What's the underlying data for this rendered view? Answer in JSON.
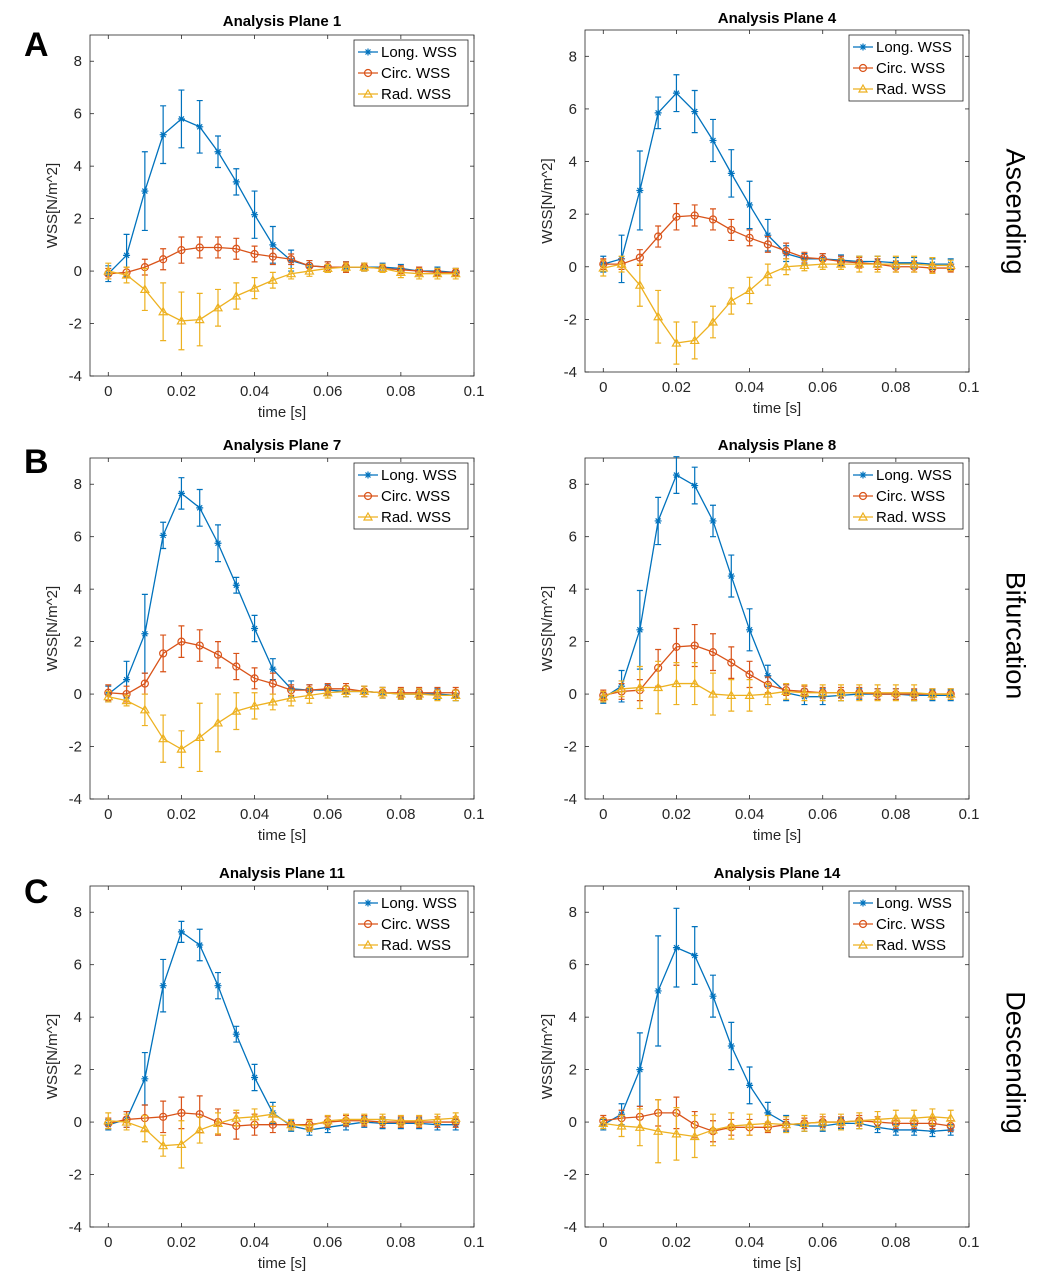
{
  "panel_letters": [
    "A",
    "B",
    "C"
  ],
  "row_labels": [
    "Ascending",
    "Bifurcation",
    "Descending"
  ],
  "colors": {
    "long": "#0072BD",
    "circ": "#D95319",
    "rad": "#EDB120",
    "axis": "#262626",
    "grid_box": "#262626"
  },
  "chart_data": [
    {
      "type": "line",
      "title": "Analysis Plane 1",
      "xlabel": "time [s]",
      "ylabel": "WSS[N/m^2]",
      "xlim": [
        -0.005,
        0.1
      ],
      "ylim": [
        -4,
        9
      ],
      "xticks": [
        "0",
        "0.02",
        "0.04",
        "0.06",
        "0.08",
        "0.1"
      ],
      "yticks": [
        "-4",
        "-2",
        "0",
        "2",
        "4",
        "6",
        "8"
      ],
      "legend": [
        "Long. WSS",
        "Circ. WSS",
        "Rad. WSS"
      ],
      "legend_location": "top-right",
      "series": [
        {
          "name": "Long. WSS",
          "y": [
            -0.1,
            0.6,
            3.05,
            5.2,
            5.8,
            5.5,
            4.55,
            3.4,
            2.15,
            1.0,
            0.4,
            0.2,
            0.15,
            0.15,
            0.15,
            0.15,
            0.1,
            0.0,
            0.0,
            -0.05
          ],
          "err": [
            0.3,
            0.8,
            1.5,
            1.1,
            1.1,
            1.0,
            0.6,
            0.5,
            0.9,
            0.7,
            0.4,
            0.2,
            0.2,
            0.2,
            0.15,
            0.15,
            0.15,
            0.15,
            0.15,
            0.15
          ]
        },
        {
          "name": "Circ. WSS",
          "y": [
            -0.1,
            -0.05,
            0.15,
            0.45,
            0.8,
            0.9,
            0.9,
            0.85,
            0.65,
            0.55,
            0.45,
            0.2,
            0.15,
            0.15,
            0.15,
            0.1,
            0.05,
            0.0,
            -0.05,
            -0.05
          ],
          "err": [
            0.2,
            0.2,
            0.3,
            0.4,
            0.5,
            0.4,
            0.4,
            0.4,
            0.3,
            0.3,
            0.2,
            0.2,
            0.2,
            0.2,
            0.15,
            0.15,
            0.15,
            0.15,
            0.15,
            0.15
          ]
        },
        {
          "name": "Rad. WSS",
          "y": [
            0.0,
            -0.15,
            -0.7,
            -1.55,
            -1.9,
            -1.85,
            -1.4,
            -0.95,
            -0.65,
            -0.35,
            -0.1,
            0.0,
            0.1,
            0.15,
            0.15,
            0.1,
            -0.05,
            -0.1,
            -0.1,
            -0.1
          ],
          "err": [
            0.3,
            0.3,
            0.8,
            1.1,
            1.1,
            1.0,
            0.7,
            0.5,
            0.4,
            0.3,
            0.2,
            0.2,
            0.15,
            0.15,
            0.15,
            0.15,
            0.2,
            0.2,
            0.2,
            0.2
          ]
        }
      ]
    },
    {
      "type": "line",
      "title": "Analysis Plane 4",
      "xlabel": "time [s]",
      "ylabel": "WSS[N/m^2]",
      "xlim": [
        -0.005,
        0.1
      ],
      "ylim": [
        -4,
        9
      ],
      "xticks": [
        "0",
        "0.02",
        "0.04",
        "0.06",
        "0.08",
        "0.1"
      ],
      "yticks": [
        "-4",
        "-2",
        "0",
        "2",
        "4",
        "6",
        "8"
      ],
      "legend": [
        "Long. WSS",
        "Circ. WSS",
        "Rad. WSS"
      ],
      "legend_location": "top-right",
      "series": [
        {
          "name": "Long. WSS",
          "y": [
            0.1,
            0.3,
            2.9,
            5.85,
            6.6,
            5.9,
            4.8,
            3.55,
            2.35,
            1.2,
            0.5,
            0.3,
            0.3,
            0.25,
            0.2,
            0.2,
            0.15,
            0.15,
            0.1,
            0.1
          ],
          "err": [
            0.3,
            0.9,
            1.5,
            0.6,
            0.7,
            0.8,
            0.8,
            0.9,
            0.9,
            0.6,
            0.3,
            0.2,
            0.2,
            0.2,
            0.2,
            0.2,
            0.2,
            0.2,
            0.2,
            0.2
          ]
        },
        {
          "name": "Circ. WSS",
          "y": [
            0.1,
            0.1,
            0.35,
            1.15,
            1.9,
            1.95,
            1.8,
            1.4,
            1.1,
            0.85,
            0.6,
            0.35,
            0.3,
            0.2,
            0.15,
            0.1,
            0.0,
            0.0,
            -0.05,
            -0.05
          ],
          "err": [
            0.2,
            0.2,
            0.3,
            0.4,
            0.5,
            0.4,
            0.4,
            0.4,
            0.3,
            0.3,
            0.3,
            0.2,
            0.2,
            0.2,
            0.2,
            0.2,
            0.2,
            0.2,
            0.15,
            0.15
          ]
        },
        {
          "name": "Rad. WSS",
          "y": [
            -0.05,
            0.1,
            -0.7,
            -1.9,
            -2.9,
            -2.8,
            -2.1,
            -1.3,
            -0.9,
            -0.3,
            0.0,
            0.05,
            0.1,
            0.1,
            0.1,
            0.1,
            0.1,
            0.1,
            0.05,
            0.05
          ],
          "err": [
            0.3,
            0.3,
            0.8,
            1.0,
            0.8,
            0.7,
            0.6,
            0.5,
            0.5,
            0.4,
            0.3,
            0.2,
            0.2,
            0.2,
            0.3,
            0.3,
            0.3,
            0.3,
            0.3,
            0.2
          ]
        }
      ]
    },
    {
      "type": "line",
      "title": "Analysis Plane 7",
      "xlabel": "time [s]",
      "ylabel": "WSS[N/m^2]",
      "xlim": [
        -0.005,
        0.1
      ],
      "ylim": [
        -4,
        9
      ],
      "xticks": [
        "0",
        "0.02",
        "0.04",
        "0.06",
        "0.08",
        "0.1"
      ],
      "yticks": [
        "-4",
        "-2",
        "0",
        "2",
        "4",
        "6",
        "8"
      ],
      "legend": [
        "Long. WSS",
        "Circ. WSS",
        "Rad. WSS"
      ],
      "legend_location": "top-right",
      "series": [
        {
          "name": "Long. WSS",
          "y": [
            0.0,
            0.55,
            2.3,
            6.05,
            7.65,
            7.1,
            5.75,
            4.15,
            2.5,
            0.95,
            0.2,
            0.15,
            0.15,
            0.1,
            0.1,
            0.05,
            0.0,
            0.0,
            0.0,
            -0.05
          ],
          "err": [
            0.3,
            0.7,
            1.5,
            0.5,
            0.6,
            0.7,
            0.7,
            0.3,
            0.5,
            0.4,
            0.3,
            0.2,
            0.2,
            0.2,
            0.2,
            0.2,
            0.2,
            0.2,
            0.2,
            0.2
          ]
        },
        {
          "name": "Circ. WSS",
          "y": [
            0.05,
            0.0,
            0.4,
            1.55,
            2.0,
            1.85,
            1.5,
            1.05,
            0.6,
            0.4,
            0.15,
            0.15,
            0.2,
            0.2,
            0.1,
            0.05,
            0.05,
            0.05,
            0.05,
            0.05
          ],
          "err": [
            0.3,
            0.3,
            0.4,
            0.7,
            0.6,
            0.6,
            0.5,
            0.5,
            0.4,
            0.4,
            0.2,
            0.2,
            0.2,
            0.2,
            0.2,
            0.2,
            0.2,
            0.2,
            0.2,
            0.2
          ]
        },
        {
          "name": "Rad. WSS",
          "y": [
            -0.1,
            -0.25,
            -0.6,
            -1.7,
            -2.1,
            -1.65,
            -1.1,
            -0.65,
            -0.45,
            -0.3,
            -0.15,
            -0.05,
            0.05,
            0.1,
            0.1,
            0.05,
            0.0,
            0.0,
            -0.05,
            -0.05
          ],
          "err": [
            0.2,
            0.2,
            0.6,
            0.9,
            0.7,
            1.3,
            1.1,
            0.7,
            0.5,
            0.3,
            0.3,
            0.3,
            0.2,
            0.2,
            0.2,
            0.2,
            0.2,
            0.2,
            0.2,
            0.2
          ]
        }
      ]
    },
    {
      "type": "line",
      "title": "Analysis Plane 8",
      "xlabel": "time [s]",
      "ylabel": "WSS[N/m^2]",
      "xlim": [
        -0.005,
        0.1
      ],
      "ylim": [
        -4,
        9
      ],
      "xticks": [
        "0",
        "0.02",
        "0.04",
        "0.06",
        "0.08",
        "0.1"
      ],
      "yticks": [
        "-4",
        "-2",
        "0",
        "2",
        "4",
        "6",
        "8"
      ],
      "legend": [
        "Long. WSS",
        "Circ. WSS",
        "Rad. WSS"
      ],
      "legend_location": "top-right",
      "series": [
        {
          "name": "Long. WSS",
          "y": [
            -0.15,
            0.3,
            2.45,
            6.6,
            8.35,
            7.95,
            6.6,
            4.5,
            2.45,
            0.7,
            0.05,
            -0.1,
            -0.1,
            -0.05,
            0.0,
            0.0,
            0.0,
            -0.05,
            -0.05,
            -0.05
          ],
          "err": [
            0.2,
            0.6,
            1.5,
            0.9,
            0.7,
            0.7,
            0.6,
            0.8,
            0.8,
            0.4,
            0.3,
            0.3,
            0.3,
            0.2,
            0.2,
            0.2,
            0.2,
            0.2,
            0.2,
            0.2
          ]
        },
        {
          "name": "Circ. WSS",
          "y": [
            -0.05,
            0.1,
            0.15,
            1.0,
            1.8,
            1.85,
            1.6,
            1.2,
            0.75,
            0.35,
            0.15,
            0.1,
            0.05,
            0.05,
            0.05,
            0.0,
            0.0,
            0.0,
            0.0,
            0.0
          ],
          "err": [
            0.2,
            0.3,
            0.4,
            0.7,
            0.7,
            0.8,
            0.7,
            0.6,
            0.5,
            0.3,
            0.2,
            0.2,
            0.2,
            0.2,
            0.2,
            0.2,
            0.2,
            0.2,
            0.2,
            0.2
          ]
        },
        {
          "name": "Rad. WSS",
          "y": [
            -0.1,
            0.2,
            0.25,
            0.25,
            0.4,
            0.4,
            0.0,
            -0.05,
            -0.05,
            0.0,
            0.1,
            0.05,
            0.05,
            0.05,
            0.05,
            0.05,
            0.05,
            0.05,
            0.0,
            0.0
          ],
          "err": [
            0.2,
            0.3,
            0.8,
            1.0,
            0.8,
            0.8,
            0.8,
            0.6,
            0.6,
            0.4,
            0.3,
            0.3,
            0.3,
            0.3,
            0.3,
            0.3,
            0.3,
            0.3,
            0.2,
            0.2
          ]
        }
      ]
    },
    {
      "type": "line",
      "title": "Analysis Plane 11",
      "xlabel": "time [s]",
      "ylabel": "WSS[N/m^2]",
      "xlim": [
        -0.005,
        0.1
      ],
      "ylim": [
        -4,
        9
      ],
      "xticks": [
        "0",
        "0.02",
        "0.04",
        "0.06",
        "0.08",
        "0.1"
      ],
      "yticks": [
        "-4",
        "-2",
        "0",
        "2",
        "4",
        "6",
        "8"
      ],
      "legend": [
        "Long. WSS",
        "Circ. WSS",
        "Rad. WSS"
      ],
      "legend_location": "top-right",
      "series": [
        {
          "name": "Long. WSS",
          "y": [
            -0.1,
            0.1,
            1.65,
            5.2,
            7.25,
            6.75,
            5.2,
            3.35,
            1.7,
            0.35,
            -0.15,
            -0.3,
            -0.2,
            -0.1,
            0.0,
            -0.05,
            -0.05,
            -0.05,
            -0.1,
            -0.1
          ],
          "err": [
            0.2,
            0.3,
            1.0,
            1.0,
            0.4,
            0.6,
            0.5,
            0.3,
            0.5,
            0.4,
            0.2,
            0.2,
            0.2,
            0.2,
            0.2,
            0.2,
            0.2,
            0.2,
            0.2,
            0.2
          ]
        },
        {
          "name": "Circ. WSS",
          "y": [
            -0.05,
            0.1,
            0.15,
            0.2,
            0.35,
            0.3,
            0.0,
            -0.15,
            -0.1,
            -0.1,
            -0.1,
            -0.1,
            0.0,
            0.05,
            0.05,
            0.0,
            0.0,
            0.0,
            0.0,
            0.0
          ],
          "err": [
            0.2,
            0.3,
            0.5,
            0.6,
            0.6,
            0.7,
            0.5,
            0.5,
            0.4,
            0.3,
            0.2,
            0.2,
            0.2,
            0.2,
            0.2,
            0.2,
            0.2,
            0.2,
            0.2,
            0.2
          ]
        },
        {
          "name": "Rad. WSS",
          "y": [
            0.05,
            0.0,
            -0.25,
            -0.9,
            -0.85,
            -0.3,
            -0.05,
            0.15,
            0.2,
            0.3,
            -0.1,
            -0.15,
            0.05,
            0.1,
            0.1,
            0.1,
            0.05,
            0.05,
            0.1,
            0.15
          ],
          "err": [
            0.3,
            0.3,
            0.5,
            0.4,
            0.9,
            0.5,
            0.4,
            0.3,
            0.3,
            0.3,
            0.2,
            0.2,
            0.2,
            0.2,
            0.2,
            0.2,
            0.2,
            0.2,
            0.2,
            0.2
          ]
        }
      ]
    },
    {
      "type": "line",
      "title": "Analysis Plane 14",
      "xlabel": "time [s]",
      "ylabel": "WSS[N/m^2]",
      "xlim": [
        -0.005,
        0.1
      ],
      "ylim": [
        -4,
        9
      ],
      "xticks": [
        "0",
        "0.02",
        "0.04",
        "0.06",
        "0.08",
        "0.1"
      ],
      "yticks": [
        "-4",
        "-2",
        "0",
        "2",
        "4",
        "6",
        "8"
      ],
      "legend": [
        "Long. WSS",
        "Circ. WSS",
        "Rad. WSS"
      ],
      "legend_location": "top-right",
      "series": [
        {
          "name": "Long. WSS",
          "y": [
            -0.1,
            0.3,
            2.0,
            5.0,
            6.65,
            6.35,
            4.8,
            2.9,
            1.4,
            0.35,
            -0.05,
            -0.15,
            -0.15,
            -0.05,
            -0.05,
            -0.2,
            -0.3,
            -0.3,
            -0.35,
            -0.3
          ],
          "err": [
            0.2,
            0.4,
            1.4,
            2.1,
            1.5,
            1.1,
            0.8,
            0.9,
            0.7,
            0.4,
            0.3,
            0.2,
            0.2,
            0.2,
            0.2,
            0.2,
            0.2,
            0.2,
            0.2,
            0.2
          ]
        },
        {
          "name": "Circ. WSS",
          "y": [
            0.05,
            0.15,
            0.2,
            0.35,
            0.35,
            -0.1,
            -0.35,
            -0.2,
            -0.2,
            -0.2,
            -0.1,
            -0.05,
            0.0,
            0.0,
            0.05,
            0.0,
            -0.05,
            -0.05,
            -0.05,
            -0.15
          ],
          "err": [
            0.2,
            0.3,
            0.4,
            0.5,
            0.6,
            0.5,
            0.4,
            0.3,
            0.3,
            0.2,
            0.2,
            0.2,
            0.2,
            0.2,
            0.2,
            0.2,
            0.2,
            0.2,
            0.2,
            0.2
          ]
        },
        {
          "name": "Rad. WSS",
          "y": [
            -0.05,
            -0.15,
            -0.2,
            -0.35,
            -0.45,
            -0.55,
            -0.3,
            -0.15,
            -0.1,
            -0.05,
            -0.1,
            -0.05,
            0.0,
            0.0,
            0.05,
            0.1,
            0.15,
            0.15,
            0.2,
            0.15
          ],
          "err": [
            0.2,
            0.4,
            0.7,
            1.2,
            1.0,
            0.8,
            0.6,
            0.5,
            0.4,
            0.3,
            0.3,
            0.3,
            0.3,
            0.3,
            0.3,
            0.3,
            0.3,
            0.3,
            0.3,
            0.3
          ]
        }
      ]
    }
  ]
}
